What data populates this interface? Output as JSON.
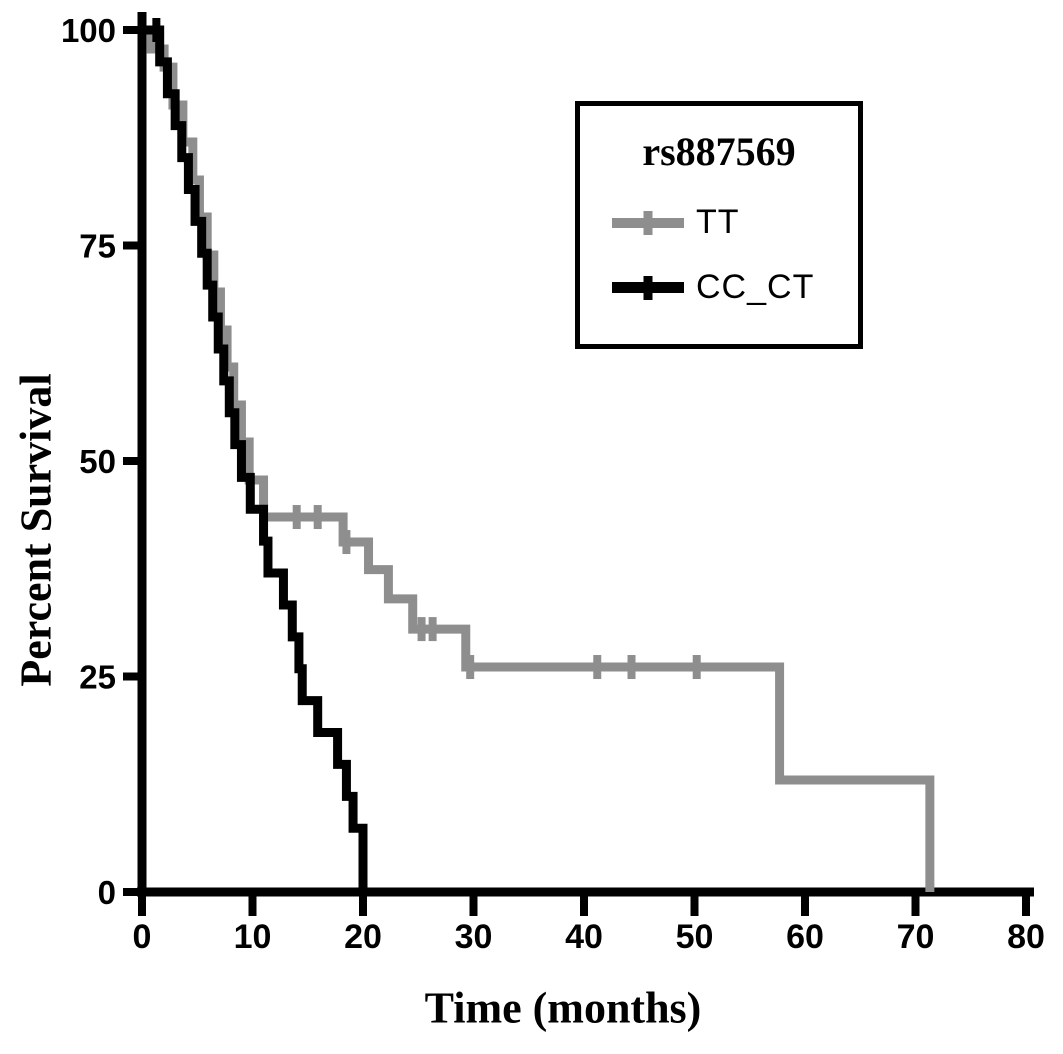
{
  "chart_data": {
    "type": "line",
    "subtype": "kaplan-meier-step",
    "title": "rs887569",
    "xlabel": "Time (months)",
    "ylabel": "Percent Survival",
    "xlim": [
      0,
      80
    ],
    "ylim": [
      0,
      100
    ],
    "x_ticks": [
      0,
      10,
      20,
      30,
      40,
      50,
      60,
      70,
      80
    ],
    "y_ticks": [
      0,
      25,
      50,
      75,
      100
    ],
    "grid": false,
    "legend_position": "upper-right",
    "axis_color": "#000000",
    "series": [
      {
        "name": "TT",
        "color": "#8e8e8e",
        "steps": [
          [
            0,
            100
          ],
          [
            0.8,
            97.8
          ],
          [
            2.0,
            95.7
          ],
          [
            2.8,
            91.3
          ],
          [
            3.7,
            87.0
          ],
          [
            4.6,
            82.6
          ],
          [
            5.2,
            78.3
          ],
          [
            5.9,
            73.9
          ],
          [
            6.5,
            69.6
          ],
          [
            7.1,
            65.2
          ],
          [
            7.7,
            60.9
          ],
          [
            8.3,
            56.5
          ],
          [
            9.0,
            52.2
          ],
          [
            9.7,
            47.8
          ],
          [
            11.0,
            43.5
          ],
          [
            18.2,
            40.6
          ],
          [
            20.5,
            37.4
          ],
          [
            22.3,
            34.0
          ],
          [
            24.5,
            30.5
          ],
          [
            29.3,
            26.1
          ],
          [
            57.7,
            13.0
          ],
          [
            71.3,
            0
          ]
        ],
        "censor_marks": [
          [
            14.0,
            43.5
          ],
          [
            15.9,
            43.5
          ],
          [
            18.5,
            40.6
          ],
          [
            25.3,
            30.5
          ],
          [
            26.3,
            30.5
          ],
          [
            29.7,
            26.1
          ],
          [
            41.2,
            26.1
          ],
          [
            44.3,
            26.1
          ],
          [
            50.2,
            26.1
          ]
        ]
      },
      {
        "name": "CC_CT",
        "color": "#000000",
        "steps": [
          [
            0,
            100
          ],
          [
            1.6,
            96.3
          ],
          [
            2.3,
            92.6
          ],
          [
            3.0,
            88.9
          ],
          [
            3.6,
            85.2
          ],
          [
            4.2,
            81.5
          ],
          [
            4.8,
            77.8
          ],
          [
            5.4,
            74.1
          ],
          [
            5.9,
            70.4
          ],
          [
            6.4,
            66.7
          ],
          [
            6.9,
            63.0
          ],
          [
            7.4,
            59.3
          ],
          [
            7.9,
            55.6
          ],
          [
            8.4,
            51.9
          ],
          [
            9.0,
            48.1
          ],
          [
            9.8,
            44.4
          ],
          [
            11.0,
            40.7
          ],
          [
            11.4,
            37.0
          ],
          [
            12.8,
            33.3
          ],
          [
            13.6,
            29.6
          ],
          [
            14.2,
            25.9
          ],
          [
            14.5,
            22.2
          ],
          [
            15.9,
            18.5
          ],
          [
            17.7,
            14.8
          ],
          [
            18.5,
            11.1
          ],
          [
            19.1,
            7.4
          ],
          [
            20.0,
            0
          ]
        ],
        "censor_marks": [
          [
            1.3,
            100
          ]
        ]
      }
    ]
  }
}
